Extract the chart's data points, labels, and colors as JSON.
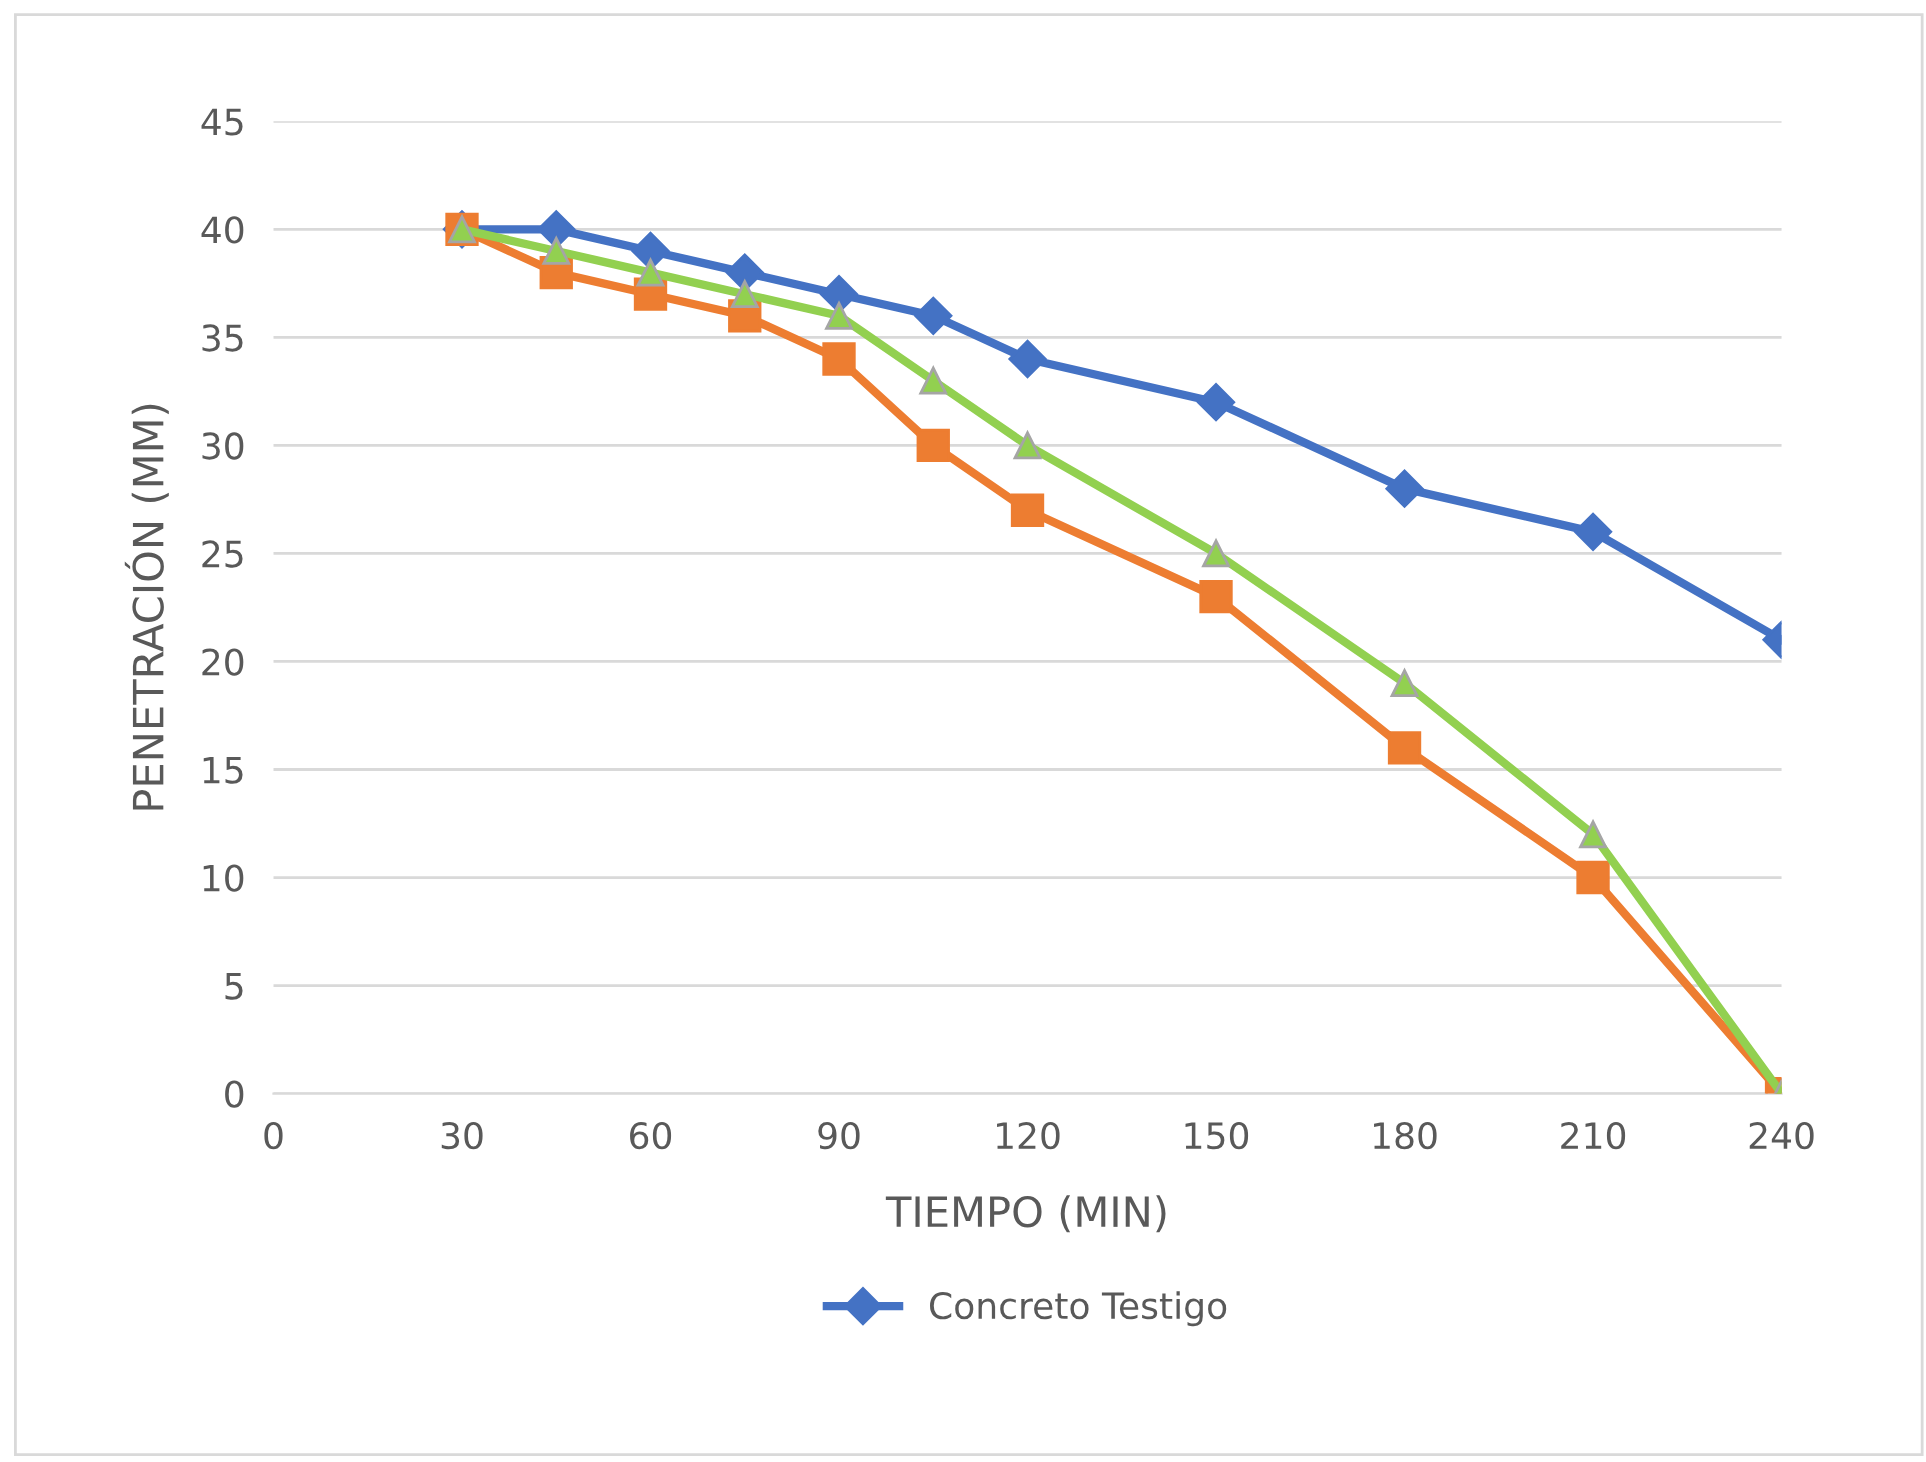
{
  "chart_data": {
    "type": "line",
    "xlabel": "TIEMPO (MIN)",
    "ylabel": "PENETRACIÓN (MM)",
    "xlim": [
      0,
      240
    ],
    "xticks": [
      0,
      30,
      60,
      90,
      120,
      150,
      180,
      210,
      240
    ],
    "ylim": [
      0,
      45
    ],
    "yticks": [
      0,
      5,
      10,
      15,
      20,
      25,
      30,
      35,
      40,
      45
    ],
    "grid": "y",
    "legend": "bottom",
    "line_style": "solid",
    "x": [
      30,
      45,
      60,
      75,
      90,
      105,
      120,
      150,
      180,
      210,
      240
    ],
    "series": [
      {
        "name": "Concreto Testigo",
        "color": "#4472c4",
        "marker": "diamond",
        "values": [
          40,
          40,
          39,
          38,
          37,
          36,
          34,
          32,
          28,
          26,
          21
        ]
      },
      {
        "color": "#ed7d31",
        "marker": "square",
        "values": [
          40,
          38,
          37,
          36,
          34,
          30,
          27,
          23,
          16,
          10,
          0
        ]
      },
      {
        "color": "#92d050",
        "marker": "triangle",
        "values": [
          40,
          39,
          38,
          37,
          36,
          33,
          30,
          25,
          19,
          12,
          0
        ]
      }
    ]
  }
}
